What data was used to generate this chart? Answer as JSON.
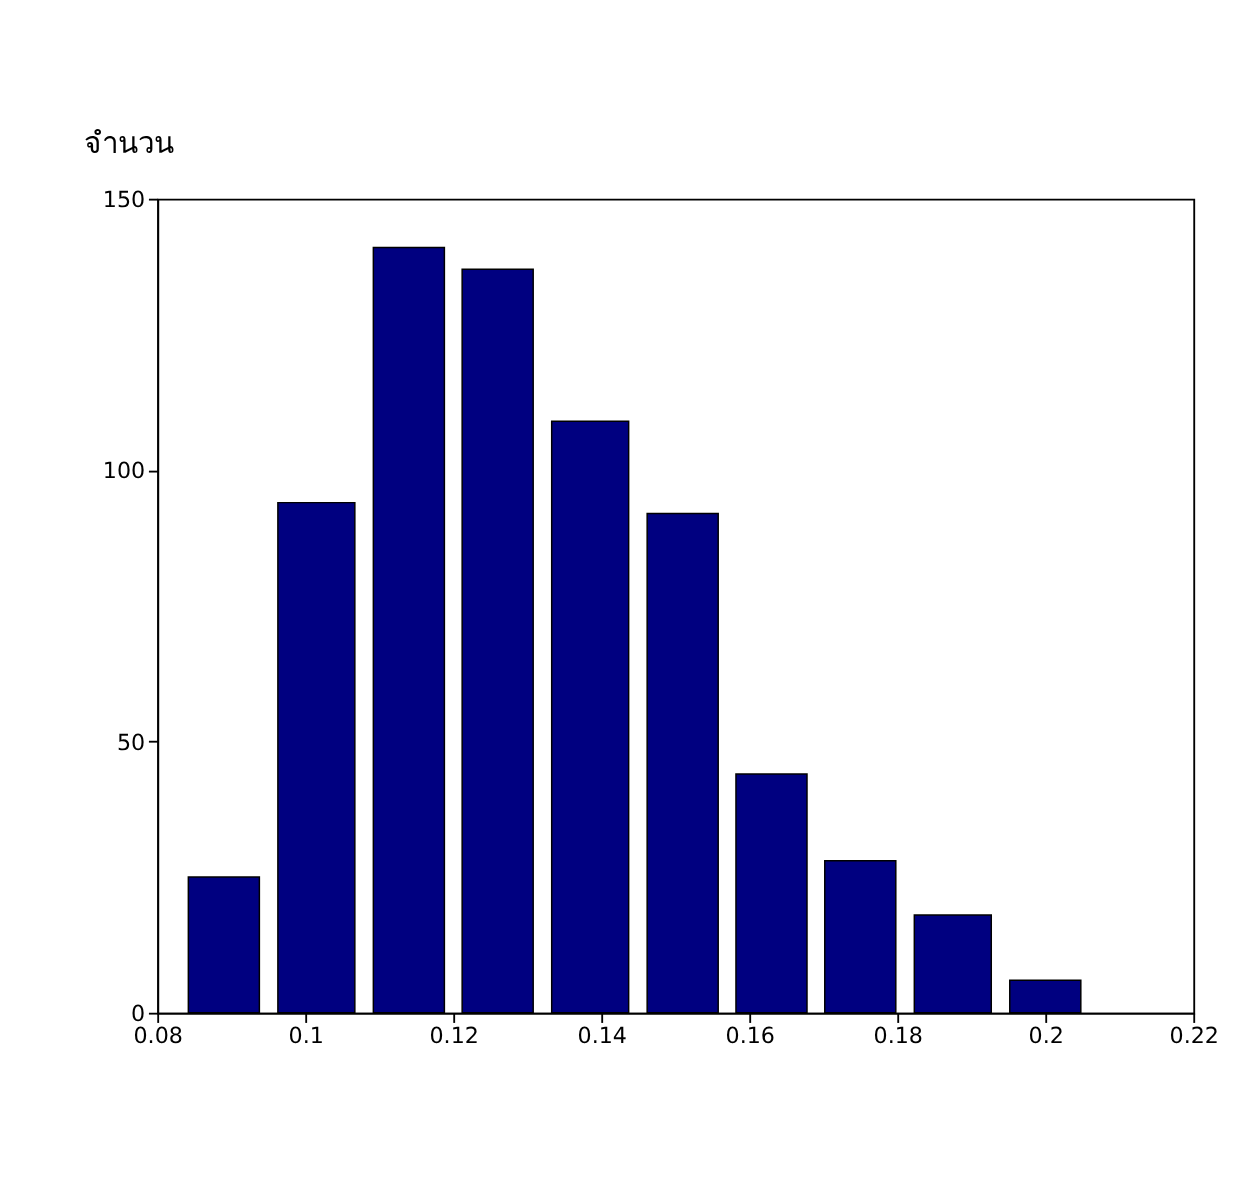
{
  "chart_data": {
    "type": "histogram",
    "ylabel": "จำนวน",
    "bins": [
      0.083,
      0.095,
      0.108,
      0.12,
      0.132,
      0.145,
      0.157,
      0.169,
      0.181,
      0.194,
      0.206
    ],
    "values": [
      25,
      94,
      141,
      137,
      109,
      92,
      44,
      28,
      18,
      6
    ],
    "color": "#000080",
    "xlim": [
      0.08,
      0.22
    ],
    "xticks": [
      0.08,
      0.1,
      0.12,
      0.14,
      0.16,
      0.18,
      0.2,
      0.22
    ],
    "ylim": [
      0,
      150
    ],
    "yticks": [
      0,
      50,
      100,
      150
    ],
    "grid": false
  }
}
